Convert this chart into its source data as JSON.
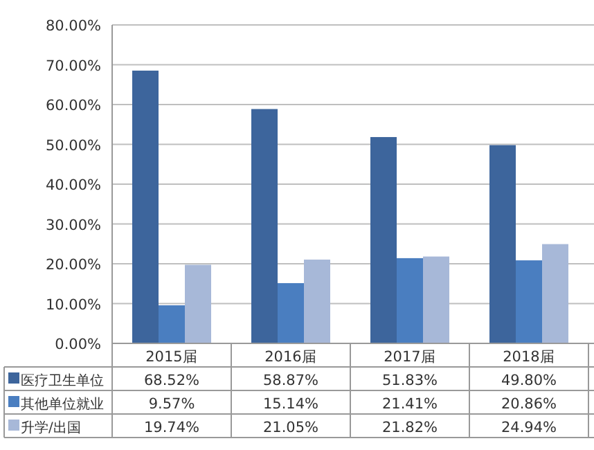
{
  "chart_data": {
    "type": "bar",
    "categories": [
      "2015届",
      "2016届",
      "2017届",
      "2018届"
    ],
    "series": [
      {
        "name": "医疗卫生单位",
        "color": "#3d659c",
        "values": [
          68.52,
          58.87,
          51.83,
          49.8
        ],
        "value_labels": [
          "68.52%",
          "58.87%",
          "51.83%",
          "49.80%"
        ]
      },
      {
        "name": "其他单位就业",
        "color": "#4a7ec0",
        "values": [
          9.57,
          15.14,
          21.41,
          20.86
        ],
        "value_labels": [
          "9.57%",
          "15.14%",
          "21.41%",
          "20.86%"
        ]
      },
      {
        "name": "升学/出国",
        "color": "#a7b8d8",
        "values": [
          19.74,
          21.05,
          21.82,
          24.94
        ],
        "value_labels": [
          "19.74%",
          "21.05%",
          "21.82%",
          "24.94%"
        ]
      }
    ],
    "ylim": [
      0,
      80
    ],
    "yticks": [
      {
        "value": 0,
        "label": "0.00%"
      },
      {
        "value": 10,
        "label": "10.00%"
      },
      {
        "value": 20,
        "label": "20.00%"
      },
      {
        "value": 30,
        "label": "30.00%"
      },
      {
        "value": 40,
        "label": "40.00%"
      },
      {
        "value": 50,
        "label": "50.00%"
      },
      {
        "value": 60,
        "label": "60.00%"
      },
      {
        "value": 70,
        "label": "70.00%"
      },
      {
        "value": 80,
        "label": "80.00%"
      }
    ],
    "grid": "y",
    "legend": "bottom"
  }
}
